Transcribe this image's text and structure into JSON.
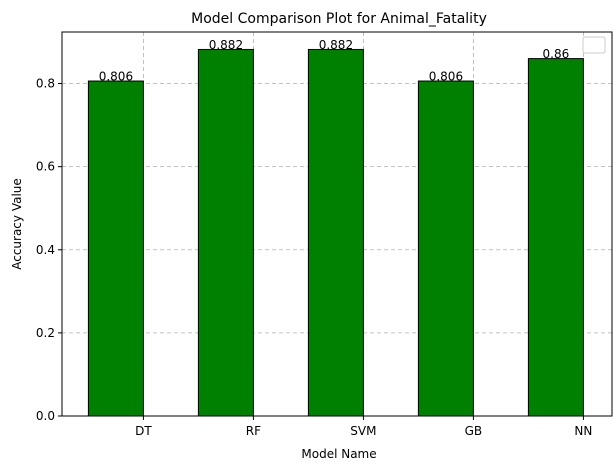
{
  "chart_data": {
    "type": "bar",
    "title": "Model Comparison Plot for Animal_Fatality",
    "xlabel": "Model Name",
    "ylabel": "Accuracy Value",
    "categories": [
      "DT",
      "RF",
      "SVM",
      "GB",
      "NN"
    ],
    "values": [
      0.806,
      0.882,
      0.882,
      0.806,
      0.86
    ],
    "data_labels": [
      "0.806",
      "0.882",
      "0.882",
      "0.806",
      "0.86"
    ],
    "ylim": [
      0,
      0.924
    ],
    "yticks": [
      0.0,
      0.2,
      0.4,
      0.6,
      0.8
    ],
    "ytick_labels": [
      "0.0",
      "0.2",
      "0.4",
      "0.6",
      "0.8"
    ],
    "grid": true,
    "grid_style": "dashed",
    "legend": "top-right (empty)",
    "colors": {
      "bar_fill": "#008000",
      "bar_edge": "#000000",
      "grid": "#b0b0b0"
    }
  }
}
